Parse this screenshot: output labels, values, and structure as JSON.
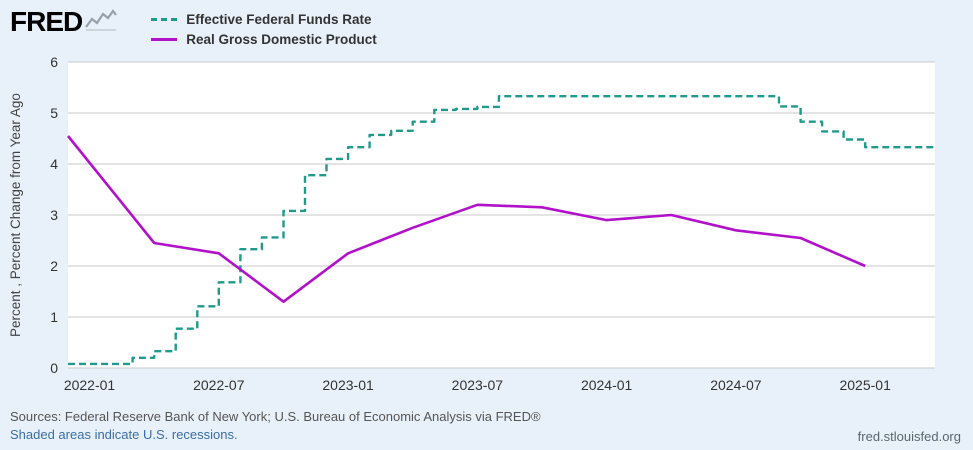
{
  "header": {
    "logo_text": "FRED",
    "legend": [
      {
        "label": "Effective Federal Funds Rate"
      },
      {
        "label": "Real Gross Domestic Product"
      }
    ]
  },
  "footer": {
    "sources_text": "Sources: Federal Reserve Bank of New York; U.S. Bureau of Economic Analysis via FRED®",
    "recession_note": "Shaded areas indicate U.S. recessions.",
    "site_link": "fred.stlouisfed.org"
  },
  "colors": {
    "page_background": "#e8f1fa",
    "plot_background": "#ffffff",
    "gridline": "#c9c9c9",
    "ffr_line": "#1f9a8c",
    "gdp_line": "#b111c9",
    "link_blue": "#3a6ea8"
  },
  "chart_data": {
    "type": "line",
    "title": "",
    "xlabel": "",
    "ylabel": "Percent , Percent Change from Year Ago",
    "ylim": [
      0,
      6
    ],
    "yticks": [
      0,
      1,
      2,
      3,
      4,
      5,
      6
    ],
    "xlim": [
      2021.9167,
      2025.27
    ],
    "xticks": [
      {
        "t": 2022.0,
        "label": "2022-01"
      },
      {
        "t": 2022.5,
        "label": "2022-07"
      },
      {
        "t": 2023.0,
        "label": "2023-01"
      },
      {
        "t": 2023.5,
        "label": "2023-07"
      },
      {
        "t": 2024.0,
        "label": "2024-01"
      },
      {
        "t": 2024.5,
        "label": "2024-07"
      },
      {
        "t": 2025.0,
        "label": "2025-01"
      }
    ],
    "grid": true,
    "legend_position": "top-left",
    "series": [
      {
        "name": "Effective Federal Funds Rate",
        "type": "step",
        "dashed": true,
        "color": "#1f9a8c",
        "frequency": "monthly",
        "points": [
          [
            "2021-12",
            0.08
          ],
          [
            "2022-01",
            0.08
          ],
          [
            "2022-02",
            0.08
          ],
          [
            "2022-03",
            0.2
          ],
          [
            "2022-04",
            0.33
          ],
          [
            "2022-05",
            0.77
          ],
          [
            "2022-06",
            1.21
          ],
          [
            "2022-07",
            1.68
          ],
          [
            "2022-08",
            2.33
          ],
          [
            "2022-09",
            2.56
          ],
          [
            "2022-10",
            3.08
          ],
          [
            "2022-11",
            3.78
          ],
          [
            "2022-12",
            4.1
          ],
          [
            "2023-01",
            4.33
          ],
          [
            "2023-02",
            4.57
          ],
          [
            "2023-03",
            4.65
          ],
          [
            "2023-04",
            4.83
          ],
          [
            "2023-05",
            5.06
          ],
          [
            "2023-06",
            5.08
          ],
          [
            "2023-07",
            5.12
          ],
          [
            "2023-08",
            5.33
          ],
          [
            "2023-09",
            5.33
          ],
          [
            "2023-10",
            5.33
          ],
          [
            "2023-11",
            5.33
          ],
          [
            "2023-12",
            5.33
          ],
          [
            "2024-01",
            5.33
          ],
          [
            "2024-02",
            5.33
          ],
          [
            "2024-03",
            5.33
          ],
          [
            "2024-04",
            5.33
          ],
          [
            "2024-05",
            5.33
          ],
          [
            "2024-06",
            5.33
          ],
          [
            "2024-07",
            5.33
          ],
          [
            "2024-08",
            5.33
          ],
          [
            "2024-09",
            5.13
          ],
          [
            "2024-10",
            4.83
          ],
          [
            "2024-11",
            4.64
          ],
          [
            "2024-12",
            4.48
          ],
          [
            "2025-01",
            4.33
          ],
          [
            "2025-02",
            4.33
          ],
          [
            "2025-03",
            4.33
          ],
          [
            "2025-04",
            4.33
          ]
        ]
      },
      {
        "name": "Real Gross Domestic Product",
        "type": "line",
        "dashed": false,
        "color": "#b111c9",
        "frequency": "quarterly",
        "points": [
          [
            "2021-12",
            4.55
          ],
          [
            "2022-04",
            2.45
          ],
          [
            "2022-07",
            2.25
          ],
          [
            "2022-10",
            1.3
          ],
          [
            "2023-01",
            2.25
          ],
          [
            "2023-04",
            2.75
          ],
          [
            "2023-07",
            3.2
          ],
          [
            "2023-10",
            3.15
          ],
          [
            "2024-01",
            2.9
          ],
          [
            "2024-04",
            3.0
          ],
          [
            "2024-07",
            2.7
          ],
          [
            "2024-10",
            2.55
          ],
          [
            "2025-01",
            2.0
          ]
        ]
      }
    ]
  }
}
